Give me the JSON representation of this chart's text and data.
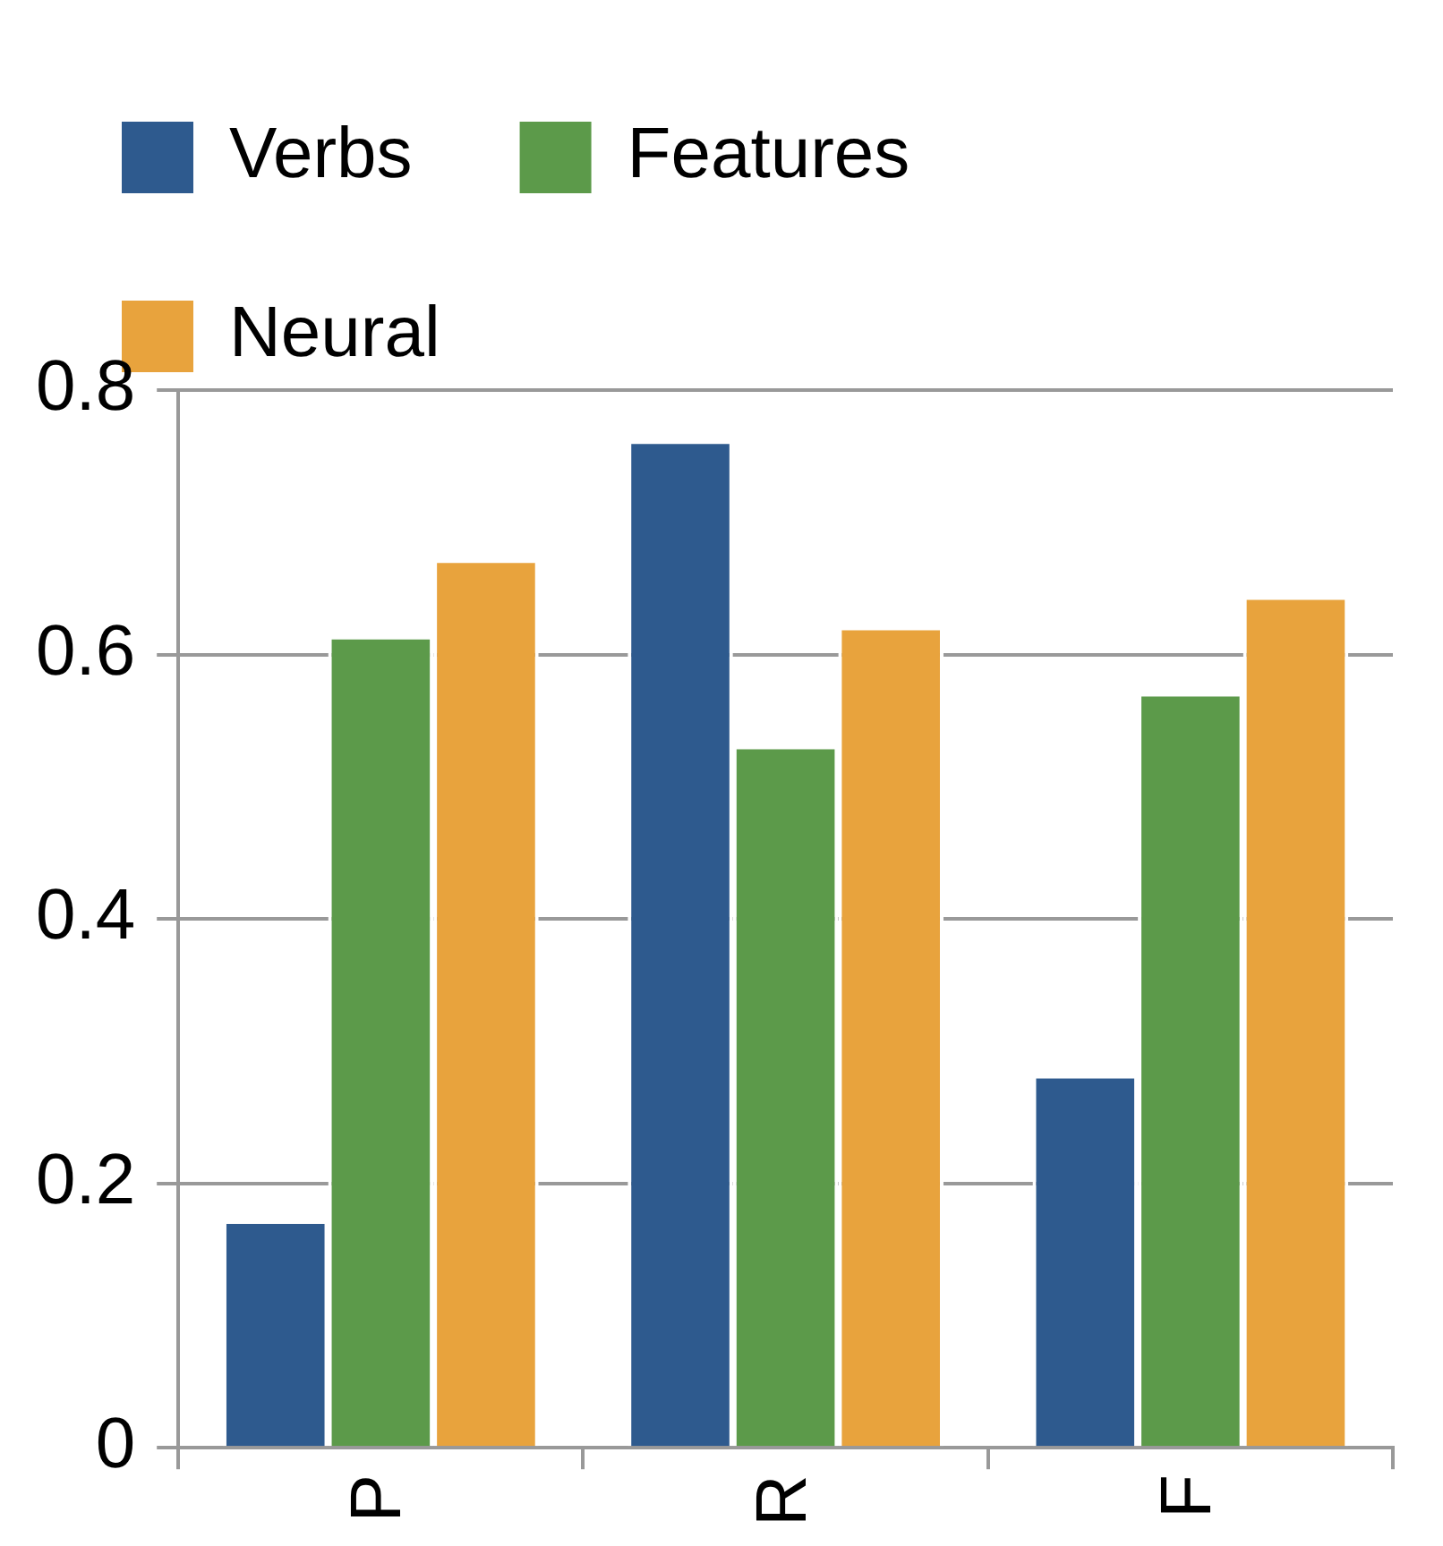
{
  "chart_data": {
    "type": "bar",
    "categories": [
      "P",
      "R",
      "F"
    ],
    "series": [
      {
        "name": "Verbs",
        "color": "#2e5a8e",
        "values": [
          0.172,
          0.762,
          0.282
        ]
      },
      {
        "name": "Features",
        "color": "#5c9a4a",
        "values": [
          0.614,
          0.531,
          0.571
        ]
      },
      {
        "name": "Neural",
        "color": "#e8a33d",
        "values": [
          0.672,
          0.621,
          0.644
        ]
      }
    ],
    "ylim": [
      0,
      0.8
    ],
    "yticks": [
      {
        "value": 0,
        "label": "0"
      },
      0.2,
      0.4,
      0.6,
      0.8
    ],
    "grid": "y",
    "legend": "top"
  }
}
